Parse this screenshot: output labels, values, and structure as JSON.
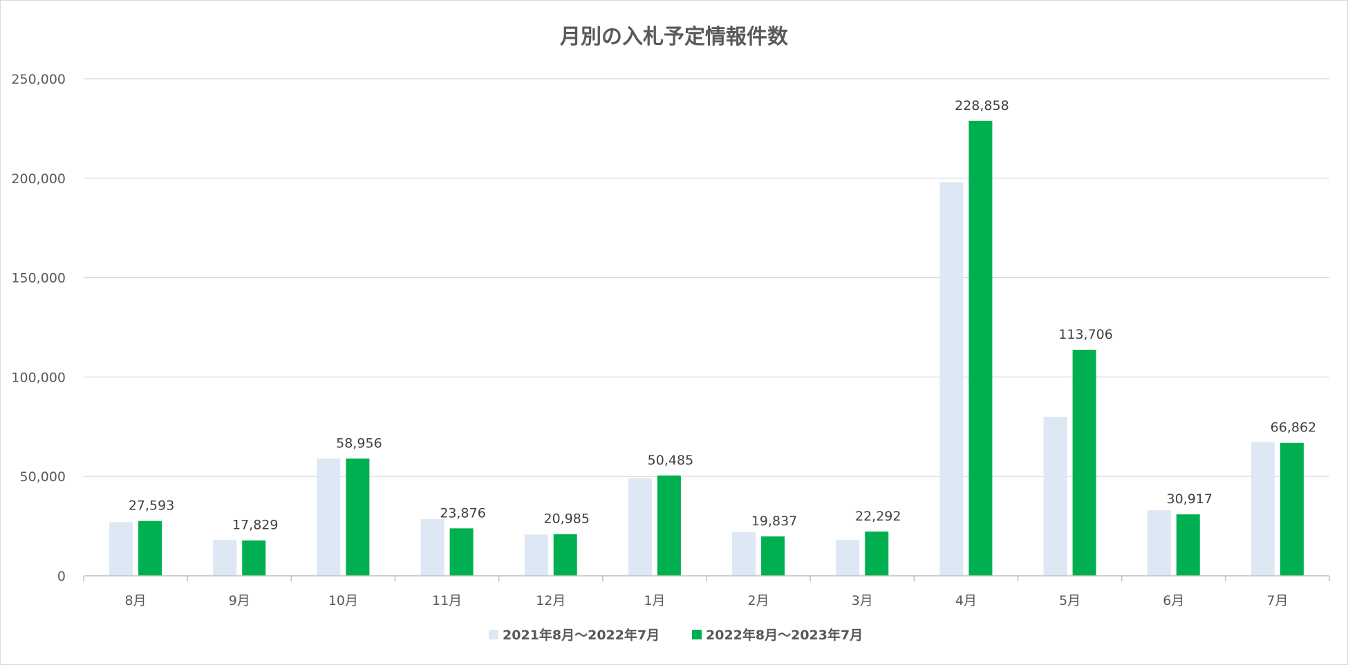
{
  "chart_data": {
    "type": "bar",
    "title": "月別の入札予定情報件数",
    "xlabel": "",
    "ylabel": "",
    "categories": [
      "8月",
      "9月",
      "10月",
      "11月",
      "12月",
      "1月",
      "2月",
      "3月",
      "4月",
      "5月",
      "6月",
      "7月"
    ],
    "series": [
      {
        "name": "2021年8月～2022年7月",
        "color": "#dde8f4",
        "values": [
          27000,
          18000,
          59000,
          28500,
          20800,
          49000,
          22000,
          18000,
          198000,
          80000,
          33000,
          67300
        ],
        "data_labels": [
          "",
          "",
          "",
          "",
          "",
          "",
          "",
          "",
          "",
          "",
          "",
          ""
        ]
      },
      {
        "name": "2022年8月～2023年7月",
        "color": "#00b050",
        "values": [
          27593,
          17829,
          58956,
          23876,
          20985,
          50485,
          19837,
          22292,
          228858,
          113706,
          30917,
          66862
        ],
        "data_labels": [
          "27,593",
          "17,829",
          "58,956",
          "23,876",
          "20,985",
          "50,485",
          "19,837",
          "22,292",
          "228,858",
          "113,706",
          "30,917",
          "66,862"
        ]
      }
    ],
    "ylim": [
      0,
      250000
    ],
    "yticks": [
      0,
      50000,
      100000,
      150000,
      200000,
      250000
    ],
    "ytick_labels": [
      "0",
      "50,000",
      "100,000",
      "150,000",
      "200,000",
      "250,000"
    ],
    "grid": true,
    "gridline_color": "#d9d9d9",
    "legend_position": "bottom"
  }
}
